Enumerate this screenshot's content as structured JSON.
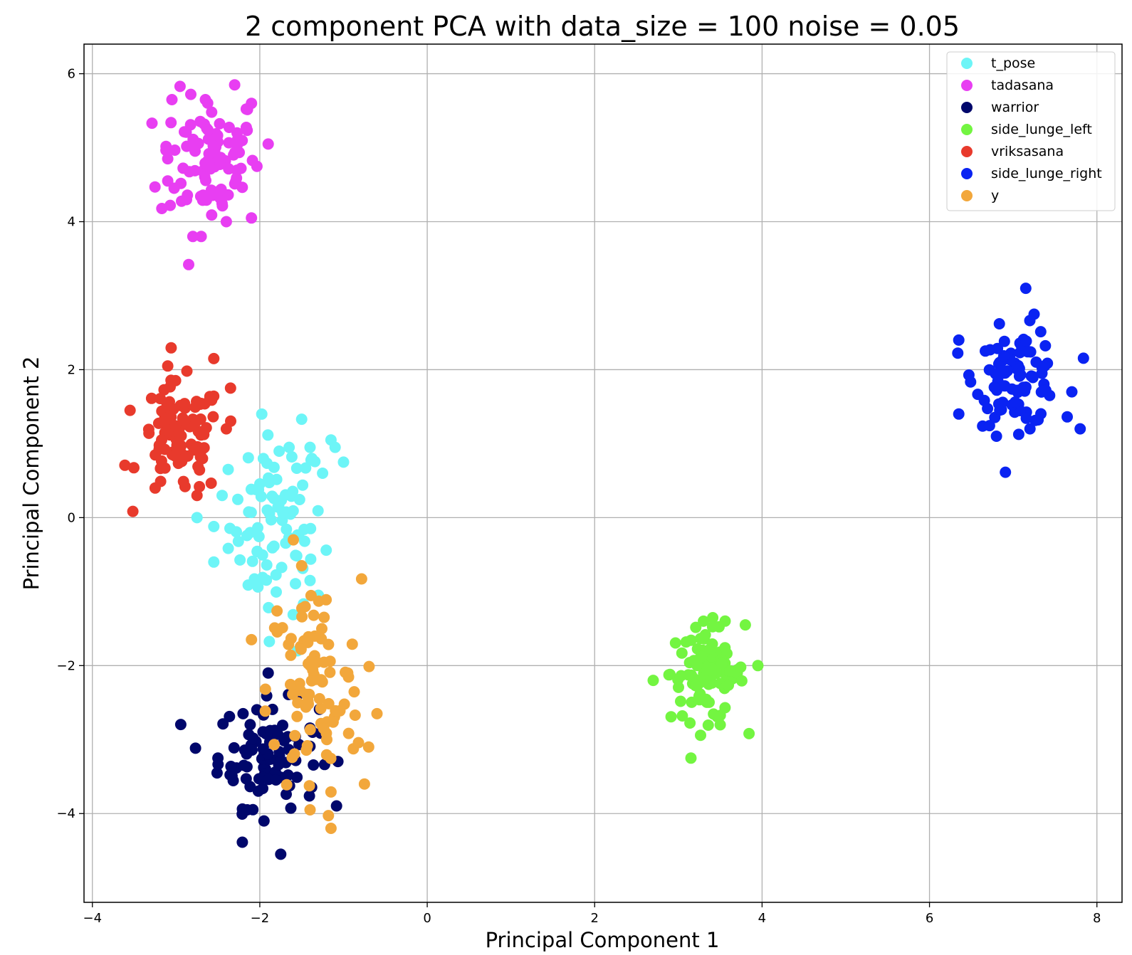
{
  "chart_data": {
    "type": "scatter",
    "title": "2 component PCA with data_size = 100 noise = 0.05",
    "xlabel": "Principal Component 1",
    "ylabel": "Principal Component 2",
    "xlim": [
      -4.1,
      8.3
    ],
    "ylim": [
      -5.2,
      6.4
    ],
    "xticks": [
      -4,
      -2,
      0,
      2,
      4,
      6,
      8
    ],
    "yticks": [
      -4,
      -2,
      0,
      2,
      4,
      6
    ],
    "xtick_labels": [
      "−4",
      "−2",
      "0",
      "2",
      "4",
      "6",
      "8"
    ],
    "ytick_labels": [
      "−4",
      "−2",
      "0",
      "2",
      "4",
      "6"
    ],
    "grid": true,
    "legend_position": "top-right",
    "series": [
      {
        "name": "t_pose",
        "color": "#6df5f7",
        "center": [
          -1.8,
          -0.1
        ],
        "spread": [
          0.28,
          0.6
        ],
        "count": 100,
        "points": [
          [
            -1.15,
            1.05
          ],
          [
            -1.1,
            0.95
          ],
          [
            -1.0,
            0.75
          ],
          [
            -1.4,
            0.95
          ],
          [
            -1.65,
            0.95
          ],
          [
            -1.25,
            0.6
          ],
          [
            -1.5,
            1.33
          ],
          [
            -2.45,
            0.3
          ],
          [
            -2.55,
            -0.6
          ],
          [
            -2.75,
            0.0
          ],
          [
            -2.55,
            -0.12
          ],
          [
            -1.55,
            -1.8
          ],
          [
            -1.3,
            -1.05
          ],
          [
            -1.4,
            -0.85
          ]
        ]
      },
      {
        "name": "tadasana",
        "color": "#e83ef2",
        "center": [
          -2.6,
          4.85
        ],
        "spread": [
          0.3,
          0.45
        ],
        "count": 100,
        "points": [
          [
            -2.3,
            5.85
          ],
          [
            -3.05,
            5.65
          ],
          [
            -2.65,
            5.65
          ],
          [
            -2.1,
            5.6
          ],
          [
            -3.1,
            4.85
          ],
          [
            -3.1,
            4.55
          ],
          [
            -1.9,
            5.05
          ],
          [
            -2.1,
            4.05
          ],
          [
            -2.4,
            4.0
          ],
          [
            -2.8,
            3.8
          ],
          [
            -2.85,
            3.42
          ],
          [
            -2.7,
            3.8
          ]
        ]
      },
      {
        "name": "warrior",
        "color": "#00076b",
        "center": [
          -1.9,
          -3.2
        ],
        "spread": [
          0.3,
          0.35
        ],
        "count": 100,
        "points": [
          [
            -1.9,
            -2.1
          ],
          [
            -2.5,
            -3.25
          ],
          [
            -2.2,
            -2.65
          ],
          [
            -1.75,
            -4.55
          ],
          [
            -1.95,
            -4.1
          ],
          [
            -2.15,
            -3.95
          ],
          [
            -1.55,
            -2.4
          ]
        ]
      },
      {
        "name": "side_lunge_left",
        "color": "#73f541",
        "center": [
          3.35,
          -2.1
        ],
        "spread": [
          0.22,
          0.32
        ],
        "count": 100,
        "points": [
          [
            3.15,
            -3.25
          ],
          [
            2.7,
            -2.2
          ],
          [
            3.8,
            -1.45
          ],
          [
            3.95,
            -2.0
          ],
          [
            3.3,
            -1.4
          ],
          [
            3.5,
            -2.8
          ]
        ]
      },
      {
        "name": "vriksasana",
        "color": "#e83a2c",
        "center": [
          -2.95,
          1.05
        ],
        "spread": [
          0.25,
          0.38
        ],
        "count": 100,
        "points": [
          [
            -3.55,
            1.45
          ],
          [
            -2.55,
            2.15
          ],
          [
            -3.1,
            2.05
          ],
          [
            -2.35,
            1.75
          ],
          [
            -3.25,
            0.4
          ],
          [
            -2.75,
            0.3
          ],
          [
            -2.4,
            1.2
          ]
        ]
      },
      {
        "name": "side_lunge_right",
        "color": "#0a23f2",
        "center": [
          7.05,
          1.9
        ],
        "spread": [
          0.25,
          0.32
        ],
        "count": 100,
        "points": [
          [
            7.15,
            3.1
          ],
          [
            7.25,
            2.75
          ],
          [
            6.35,
            2.4
          ],
          [
            6.35,
            1.4
          ],
          [
            7.8,
            1.2
          ],
          [
            6.8,
            1.1
          ],
          [
            7.2,
            1.2
          ],
          [
            7.7,
            1.7
          ]
        ]
      },
      {
        "name": "y",
        "color": "#f2a73b",
        "center": [
          -1.35,
          -2.35
        ],
        "spread": [
          0.28,
          0.75
        ],
        "count": 100,
        "points": [
          [
            -0.6,
            -2.65
          ],
          [
            -0.7,
            -3.1
          ],
          [
            -0.75,
            -3.6
          ],
          [
            -1.15,
            -4.2
          ],
          [
            -1.4,
            -3.95
          ],
          [
            -2.1,
            -1.65
          ],
          [
            -1.6,
            -0.3
          ],
          [
            -1.5,
            -0.65
          ],
          [
            -0.95,
            -2.1
          ]
        ]
      }
    ]
  }
}
